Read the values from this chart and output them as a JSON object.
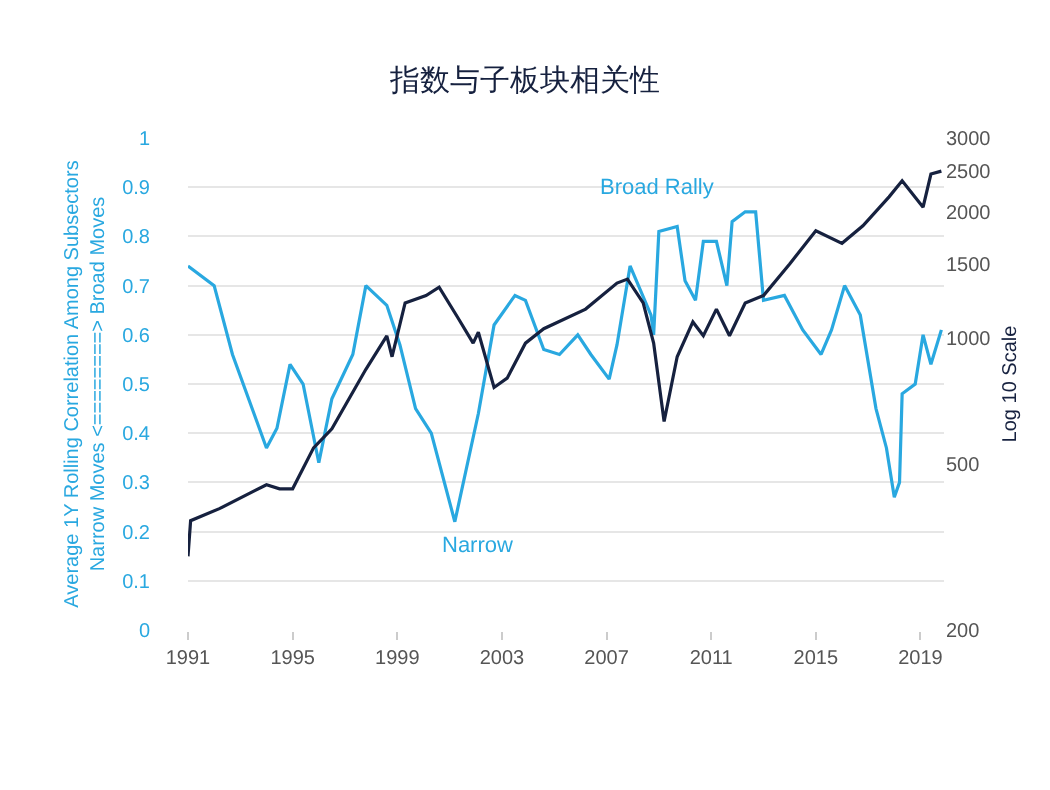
{
  "chart_data": {
    "type": "line",
    "title": "指数与子板块相关性",
    "ylabel": "Average 1Y Rolling Correlation Among Subsectors\nNarrow Moves <========> Broad Moves",
    "y2label": "Log 10 Scale",
    "annotations": [
      "Broad Rally",
      "Narrow"
    ],
    "xlim": [
      1991,
      2019.9
    ],
    "xticks": [
      1991,
      1995,
      1999,
      2003,
      2007,
      2011,
      2015,
      2019
    ],
    "ylim": [
      0,
      1
    ],
    "yticks": [
      0,
      0.1,
      0.2,
      0.3,
      0.4,
      0.5,
      0.6,
      0.7,
      0.8,
      0.9,
      1
    ],
    "y2lim": [
      200,
      3000
    ],
    "y2ticks": [
      200,
      500,
      1000,
      1500,
      2000,
      2500,
      3000
    ],
    "log": "y2",
    "grid": "y",
    "series": [
      {
        "color": "#29a8e0",
        "x": [
          1991.0,
          1992.0,
          1992.7,
          1994.0,
          1994.4,
          1994.9,
          1995.4,
          1996.0,
          1996.5,
          1997.3,
          1997.8,
          1998.6,
          1999.1,
          1999.7,
          2000.3,
          2001.2,
          2002.1,
          2002.7,
          2003.5,
          2003.9,
          2004.6,
          2005.2,
          2005.9,
          2006.4,
          2007.1,
          2007.4,
          2007.9,
          2008.7,
          2008.8,
          2009.0,
          2009.7,
          2010.0,
          2010.4,
          2010.7,
          2011.2,
          2011.6,
          2011.8,
          2012.3,
          2012.7,
          2013.0,
          2013.8,
          2014.5,
          2015.2,
          2015.6,
          2016.1,
          2016.7,
          2017.3,
          2017.7,
          2018.0,
          2018.2,
          2018.3,
          2018.8,
          2019.1,
          2019.4,
          2019.8
        ],
        "values": [
          0.74,
          0.7,
          0.56,
          0.37,
          0.41,
          0.54,
          0.5,
          0.34,
          0.47,
          0.56,
          0.7,
          0.66,
          0.58,
          0.45,
          0.4,
          0.22,
          0.44,
          0.62,
          0.68,
          0.67,
          0.57,
          0.56,
          0.6,
          0.56,
          0.51,
          0.58,
          0.74,
          0.64,
          0.6,
          0.81,
          0.82,
          0.71,
          0.67,
          0.79,
          0.79,
          0.7,
          0.83,
          0.85,
          0.85,
          0.67,
          0.68,
          0.61,
          0.56,
          0.61,
          0.7,
          0.64,
          0.45,
          0.37,
          0.27,
          0.3,
          0.48,
          0.5,
          0.6,
          0.54,
          0.61
        ]
      },
      {
        "color": "#16213f",
        "axis": "y2",
        "x": [
          1991.0,
          1991.1,
          1992.2,
          1994.0,
          1994.5,
          1995.0,
          1995.8,
          1996.5,
          1997.8,
          1998.6,
          1998.8,
          1999.3,
          2000.1,
          2000.6,
          2001.3,
          2001.9,
          2002.1,
          2002.7,
          2003.2,
          2003.9,
          2004.6,
          2006.2,
          2007.4,
          2007.8,
          2008.4,
          2008.8,
          2009.2,
          2009.7,
          2010.3,
          2010.7,
          2011.2,
          2011.7,
          2012.3,
          2013.0,
          2014.0,
          2015.0,
          2016.0,
          2016.8,
          2017.8,
          2018.3,
          2019.1,
          2019.4,
          2019.8
        ],
        "values": [
          300,
          365,
          390,
          445,
          435,
          435,
          545,
          605,
          840,
          1010,
          900,
          1210,
          1260,
          1320,
          1120,
          970,
          1030,
          760,
          800,
          970,
          1050,
          1170,
          1350,
          1380,
          1210,
          970,
          630,
          900,
          1090,
          1010,
          1170,
          1010,
          1210,
          1260,
          1500,
          1800,
          1680,
          1850,
          2170,
          2370,
          2050,
          2460,
          2500
        ]
      }
    ]
  }
}
